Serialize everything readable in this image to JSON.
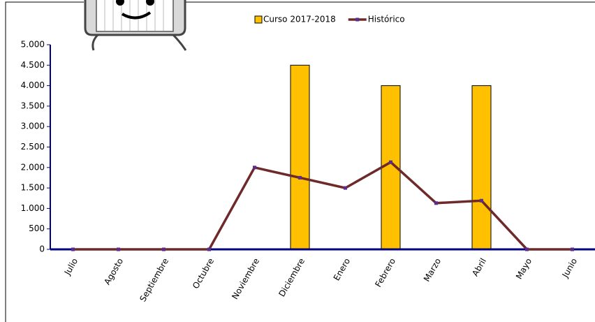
{
  "chart_data": {
    "type": "bar",
    "categories": [
      "Julio",
      "Agosto",
      "Septiembre",
      "Octubre",
      "Noviembre",
      "Diciembre",
      "Enero",
      "Febrero",
      "Marzo",
      "Abril",
      "Mayo",
      "Junio"
    ],
    "series": [
      {
        "name": "Curso 2017-2018",
        "type": "bar",
        "color": "#ffc000",
        "values": [
          0,
          0,
          0,
          0,
          0,
          4500,
          0,
          4000,
          0,
          4000,
          0,
          0
        ]
      },
      {
        "name": "Histórico",
        "type": "line",
        "color": "#6e2a2a",
        "marker_color": "#5b2c8e",
        "values": [
          0,
          0,
          0,
          0,
          2000,
          1750,
          1500,
          2130,
          1130,
          1190,
          0,
          0
        ]
      }
    ],
    "ylim": [
      0,
      5000
    ],
    "yticks": [
      0,
      500,
      {
        "value": 1000,
        "label": "1.000"
      },
      {
        "value": 1500,
        "label": "1.500"
      },
      {
        "value": 2000,
        "label": "2.000"
      },
      {
        "value": 2500,
        "label": "2.500"
      },
      {
        "value": 3000,
        "label": "3.000"
      },
      {
        "value": 3500,
        "label": "3.500"
      },
      {
        "value": 4000,
        "label": "4.000"
      },
      {
        "value": 4500,
        "label": "4.500"
      },
      {
        "value": 5000,
        "label": "5.000"
      }
    ],
    "legend": "top"
  }
}
